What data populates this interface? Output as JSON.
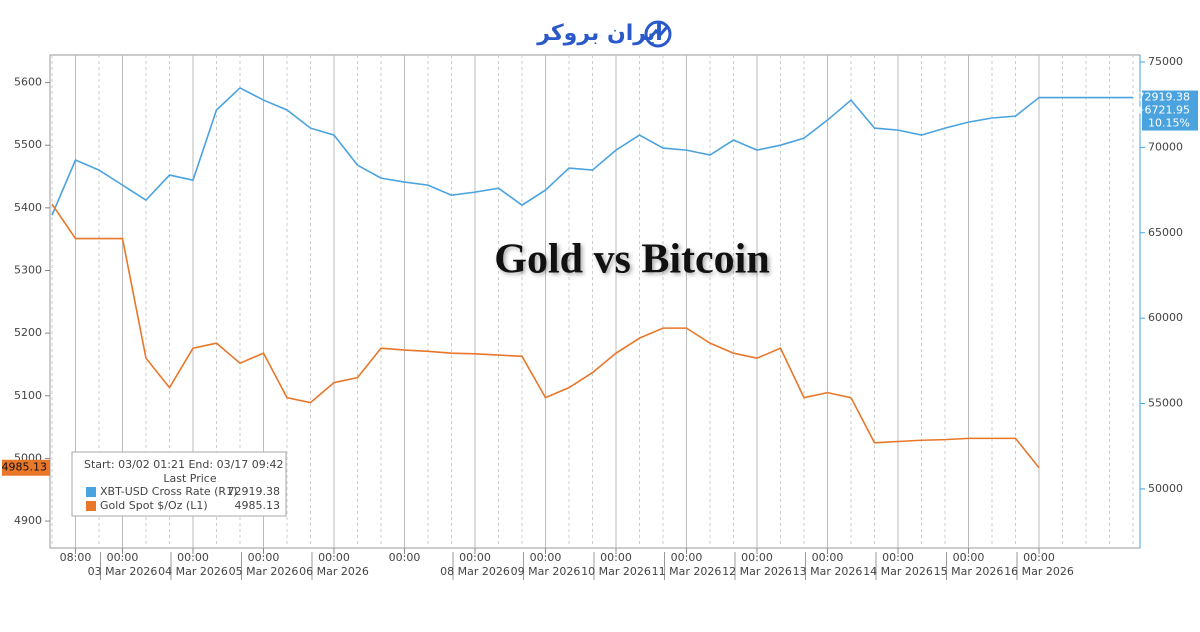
{
  "brand": "ایران بروکر",
  "chart_data": {
    "type": "line",
    "title": "Gold vs Bitcoin",
    "categories": [
      null,
      "08:00",
      null,
      "00:00",
      null,
      null,
      "00:00",
      null,
      null,
      "00:00",
      null,
      null,
      "00:00",
      null,
      null,
      "00:00",
      null,
      null,
      "00:00",
      null,
      null,
      "00:00",
      null,
      null,
      "00:00",
      null,
      null,
      "00:00",
      null,
      null,
      "00:00",
      null,
      null,
      "00:00",
      null,
      null,
      "00:00",
      null,
      null,
      "00:00",
      null,
      null,
      "00:00",
      null,
      null,
      null,
      null
    ],
    "date_labels": [
      null,
      null,
      null,
      "03 Mar 2026",
      null,
      null,
      "04 Mar 2026",
      null,
      null,
      "05 Mar 2026",
      null,
      null,
      "06 Mar 2026",
      null,
      null,
      null,
      null,
      null,
      "08 Mar 2026",
      null,
      null,
      "09 Mar 2026",
      null,
      null,
      "10 Mar 2026",
      null,
      null,
      "11 Mar 2026",
      null,
      null,
      "12 Mar 2026",
      null,
      null,
      "13 Mar 2026",
      null,
      null,
      "14 Mar 2026",
      null,
      null,
      "15 Mar 2026",
      null,
      null,
      "16 Mar 2026",
      null,
      null,
      null,
      null
    ],
    "series": [
      {
        "name": "XBT-USD Cross Rate (R1)",
        "color": "#4aa3df",
        "axis": "y2",
        "values": [
          66030,
          69260,
          68670,
          67790,
          66910,
          68380,
          68080,
          72190,
          73480,
          72770,
          72190,
          71130,
          70720,
          68960,
          68200,
          67970,
          67790,
          67200,
          67380,
          67610,
          66620,
          67500,
          68790,
          68670,
          69840,
          70720,
          69960,
          69840,
          69550,
          70430,
          69840,
          70130,
          70540,
          71600,
          72770,
          71130,
          71010,
          70720,
          71130,
          71480,
          71720,
          71830,
          72919.38,
          72919.38,
          72919.38,
          72919.38,
          72919.38
        ]
      },
      {
        "name": "Gold Spot $/Oz (L1)",
        "color": "#e8772a",
        "values": [
          5406,
          5351,
          5351,
          5351,
          5160,
          5113,
          5176,
          5184,
          5152,
          5168,
          5097,
          5089,
          5121,
          5129,
          5176,
          5173,
          5171,
          5168,
          5167,
          5165,
          5163,
          5097,
          5113,
          5137,
          5168,
          5192,
          5208,
          5208,
          5184,
          5168,
          5160,
          5176,
          5097,
          5105,
          5097,
          5025,
          5027,
          5029,
          5030,
          5032,
          5032,
          5032,
          4985.13,
          null,
          null,
          null,
          null
        ]
      }
    ],
    "ylim": [
      4857,
      5644
    ],
    "yticks": [
      4900,
      5000,
      5100,
      5200,
      5300,
      5400,
      5500,
      5600
    ],
    "y2lim": [
      46540,
      75410
    ],
    "y2ticks": [
      50000,
      55000,
      60000,
      65000,
      70000,
      75000
    ],
    "legend_header": "Start: 03/02 01:21 End: 03/17 09:42",
    "legend_column": "Last Price",
    "change": "+6721.95",
    "change_pct": "10.15%",
    "grid": true
  }
}
